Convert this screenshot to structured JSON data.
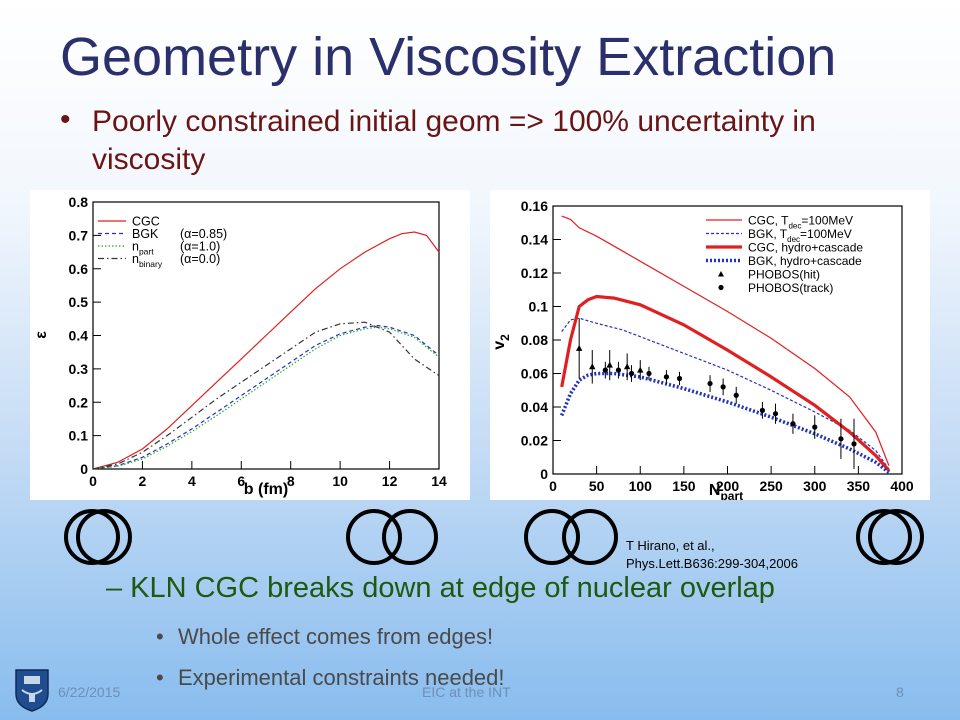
{
  "slide": {
    "title": "Geometry in Viscosity Extraction",
    "bullet": "Poorly constrained initial geom => 100% uncertainty in viscosity",
    "sub_bullet": "KLN CGC breaks down at edge of nuclear overlap",
    "sub_sub_bullets": [
      "Whole effect comes from edges!",
      "Experimental constraints needed!"
    ],
    "citation": [
      "T Hirano, et al.,",
      "Phys.Lett.B636:299-304,2006"
    ],
    "footer": {
      "date": "6/22/2015",
      "center": "EIC at the INT",
      "page": "8"
    }
  },
  "chart_data": [
    {
      "type": "line",
      "xlabel": "b (fm)",
      "ylabel": "ε",
      "xlim": [
        0,
        14
      ],
      "ylim": [
        0,
        0.8
      ],
      "xticks": [
        "0",
        "2",
        "4",
        "6",
        "8",
        "10",
        "12",
        "14"
      ],
      "yticks": [
        "0",
        "0.1",
        "0.2",
        "0.3",
        "0.4",
        "0.5",
        "0.6",
        "0.7",
        "0.8"
      ],
      "legend_position": "top-left",
      "grid": false,
      "series": [
        {
          "name": "CGC",
          "color": "#e02020",
          "style": "solid",
          "x": [
            0,
            1,
            2,
            3,
            4,
            5,
            6,
            7,
            8,
            9,
            10,
            11,
            12,
            12.5,
            13,
            13.5,
            14
          ],
          "y": [
            0,
            0.02,
            0.06,
            0.12,
            0.19,
            0.26,
            0.33,
            0.4,
            0.47,
            0.54,
            0.6,
            0.65,
            0.69,
            0.705,
            0.71,
            0.7,
            0.65
          ]
        },
        {
          "name": "BGK",
          "legend_param": "(α=0.85)",
          "color": "#2233bb",
          "style": "dashed",
          "x": [
            0,
            1,
            2,
            3,
            4,
            5,
            6,
            7,
            8,
            9,
            10,
            11,
            11.5,
            12,
            13,
            14
          ],
          "y": [
            0,
            0.01,
            0.035,
            0.075,
            0.12,
            0.17,
            0.22,
            0.27,
            0.32,
            0.37,
            0.405,
            0.425,
            0.43,
            0.425,
            0.4,
            0.34
          ]
        },
        {
          "name": "n",
          "name_sub": "part",
          "legend_param": "(α=1.0)",
          "color": "#22aa22",
          "style": "dotted",
          "x": [
            0,
            1,
            2,
            3,
            4,
            5,
            6,
            7,
            8,
            9,
            10,
            11,
            11.5,
            12,
            13,
            14
          ],
          "y": [
            0,
            0.008,
            0.03,
            0.068,
            0.112,
            0.16,
            0.21,
            0.26,
            0.31,
            0.36,
            0.4,
            0.42,
            0.425,
            0.42,
            0.395,
            0.335
          ]
        },
        {
          "name": "n",
          "name_sub": "binary",
          "legend_param": "(α=0.0)",
          "color": "#333333",
          "style": "dashdot",
          "x": [
            0,
            1,
            2,
            3,
            4,
            5,
            6,
            7,
            8,
            9,
            10,
            11,
            12,
            13,
            14
          ],
          "y": [
            0,
            0.015,
            0.05,
            0.1,
            0.155,
            0.21,
            0.26,
            0.31,
            0.36,
            0.41,
            0.435,
            0.44,
            0.41,
            0.33,
            0.28
          ]
        }
      ]
    },
    {
      "type": "line",
      "xlabel": "N",
      "xlabel_sub": "part",
      "ylabel": "v",
      "ylabel_sub": "2",
      "xlim": [
        0,
        400
      ],
      "ylim": [
        0,
        0.16
      ],
      "xticks": [
        "0",
        "50",
        "100",
        "150",
        "200",
        "250",
        "300",
        "350",
        "400"
      ],
      "yticks": [
        "0",
        "0.02",
        "0.04",
        "0.06",
        "0.08",
        "0.1",
        "0.12",
        "0.14",
        "0.16"
      ],
      "legend_position": "top-right",
      "grid": false,
      "series": [
        {
          "name": "CGC, T",
          "name_sub": "dec",
          "name_suffix": "=100MeV",
          "color": "#e02020",
          "style": "thin",
          "x": [
            10,
            20,
            30,
            50,
            80,
            100,
            150,
            200,
            250,
            300,
            340,
            370,
            385
          ],
          "y": [
            0.154,
            0.152,
            0.147,
            0.142,
            0.133,
            0.127,
            0.112,
            0.097,
            0.081,
            0.063,
            0.046,
            0.025,
            0.005
          ]
        },
        {
          "name": "BGK, T",
          "name_sub": "dec",
          "name_suffix": "=100MeV",
          "color": "#2233bb",
          "style": "thin-dashed",
          "x": [
            10,
            20,
            30,
            50,
            80,
            100,
            150,
            200,
            250,
            300,
            340,
            370,
            385
          ],
          "y": [
            0.085,
            0.092,
            0.093,
            0.09,
            0.086,
            0.082,
            0.072,
            0.062,
            0.05,
            0.037,
            0.026,
            0.014,
            0.003
          ]
        },
        {
          "name": "CGC, hydro+cascade",
          "color": "#e02020",
          "style": "thick",
          "x": [
            10,
            20,
            30,
            40,
            50,
            70,
            100,
            150,
            200,
            250,
            300,
            340,
            370,
            385
          ],
          "y": [
            0.052,
            0.08,
            0.1,
            0.104,
            0.106,
            0.105,
            0.101,
            0.089,
            0.074,
            0.058,
            0.041,
            0.025,
            0.011,
            0.002
          ]
        },
        {
          "name": "BGK, hydro+cascade",
          "color": "#2233bb",
          "style": "thick-dotted",
          "x": [
            10,
            20,
            30,
            40,
            50,
            70,
            100,
            150,
            200,
            250,
            300,
            340,
            370,
            385
          ],
          "y": [
            0.035,
            0.048,
            0.056,
            0.059,
            0.06,
            0.06,
            0.058,
            0.051,
            0.043,
            0.034,
            0.024,
            0.015,
            0.007,
            0.001
          ]
        },
        {
          "name": "PHOBOS(hit)",
          "color": "#000000",
          "style": "marker-triangle",
          "x": [
            30,
            45,
            65,
            85,
            100
          ],
          "y": [
            0.075,
            0.064,
            0.065,
            0.064,
            0.062
          ],
          "err": [
            0.018,
            0.01,
            0.009,
            0.008,
            0.006
          ]
        },
        {
          "name": "PHOBOS(track)",
          "color": "#000000",
          "style": "marker-circle",
          "x": [
            60,
            75,
            90,
            110,
            130,
            145,
            180,
            195,
            210,
            240,
            255,
            275,
            300,
            330,
            345
          ],
          "y": [
            0.062,
            0.062,
            0.06,
            0.06,
            0.058,
            0.057,
            0.054,
            0.052,
            0.047,
            0.038,
            0.036,
            0.03,
            0.028,
            0.021,
            0.018
          ],
          "err": [
            0.005,
            0.005,
            0.005,
            0.004,
            0.004,
            0.004,
            0.005,
            0.005,
            0.005,
            0.005,
            0.006,
            0.006,
            0.007,
            0.012,
            0.015
          ]
        }
      ]
    }
  ]
}
